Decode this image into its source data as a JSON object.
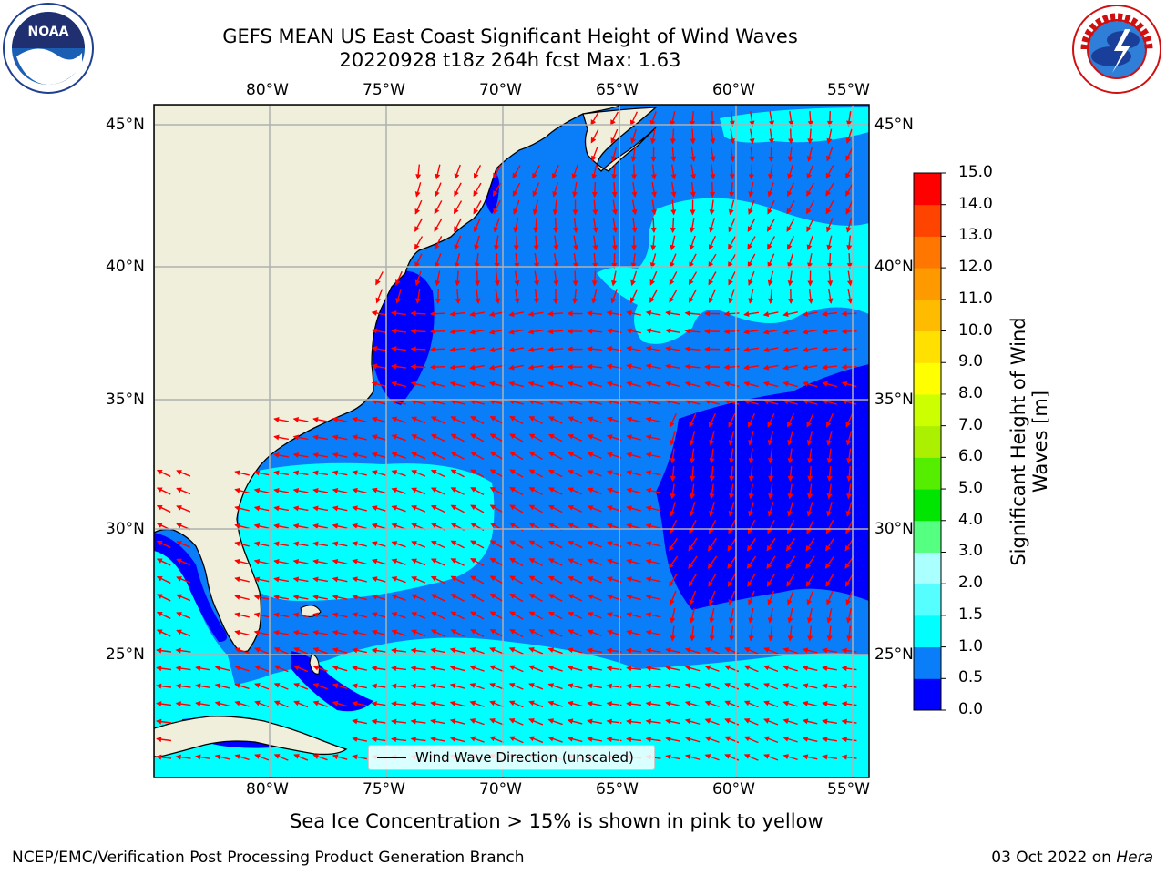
{
  "header": {
    "title_line1": "GEFS MEAN US East Coast Significant Height of Wind Waves",
    "title_line2": "20220928 t18z 264h fcst   Max: 1.63"
  },
  "logos": {
    "left": "noaa-logo",
    "right": "nws-logo"
  },
  "map": {
    "lon_ticks": [
      "80°W",
      "75°W",
      "70°W",
      "65°W",
      "60°W",
      "55°W"
    ],
    "lat_ticks": [
      "45°N",
      "40°N",
      "35°N",
      "30°N",
      "25°N"
    ],
    "legend_label": "Wind Wave Direction (unscaled)",
    "colors": {
      "land": "#efefdc",
      "wave_0_05": "#0000ff",
      "wave_05_1": "#0a7df8",
      "wave_1_15": "#00ffff",
      "arrow": "#ff0000",
      "grid": "#b0b0b0"
    }
  },
  "colorbar": {
    "title_line1": "Significant Height of Wind",
    "title_line2": "Waves [m]",
    "tick_labels": [
      "0.0",
      "0.5",
      "1.0",
      "1.5",
      "2.0",
      "3.0",
      "4.0",
      "5.0",
      "6.0",
      "7.0",
      "8.0",
      "9.0",
      "10.0",
      "11.0",
      "12.0",
      "13.0",
      "14.0",
      "15.0"
    ],
    "colors": [
      "#0000ff",
      "#0a7df8",
      "#00ffff",
      "#55ffff",
      "#aaffff",
      "#55ff80",
      "#00e600",
      "#55ee00",
      "#aaf000",
      "#ccff00",
      "#ffff00",
      "#ffe000",
      "#ffbb00",
      "#ff9900",
      "#ff7700",
      "#ff4400",
      "#ff0000"
    ]
  },
  "note": "Sea Ice Concentration > 15% is shown in pink to yellow",
  "footer": {
    "left": "NCEP/EMC/Verification Post Processing Product Generation Branch",
    "right_date": "03 Oct 2022 on",
    "right_host": "Hera"
  }
}
